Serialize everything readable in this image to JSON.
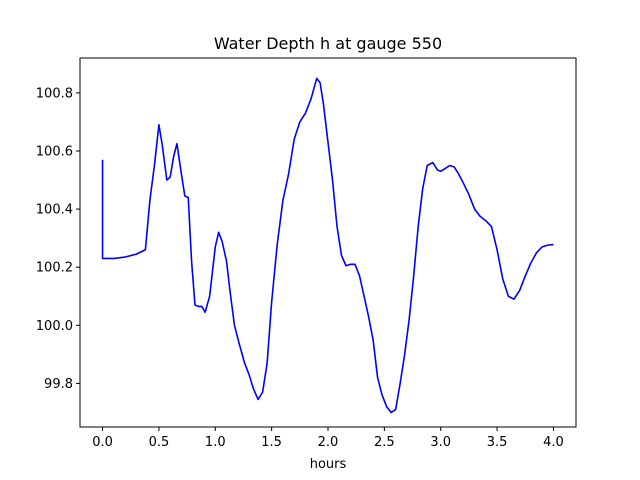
{
  "chart_data": {
    "type": "line",
    "title": "Water Depth h at gauge 550",
    "xlabel": "hours",
    "ylabel": "",
    "xlim": [
      -0.2,
      4.2
    ],
    "ylim": [
      99.65,
      100.92
    ],
    "xticks": [
      0.0,
      0.5,
      1.0,
      1.5,
      2.0,
      2.5,
      3.0,
      3.5,
      4.0
    ],
    "xtick_labels": [
      "0.0",
      "0.5",
      "1.0",
      "1.5",
      "2.0",
      "2.5",
      "3.0",
      "3.5",
      "4.0"
    ],
    "yticks": [
      99.8,
      100.0,
      100.2,
      100.4,
      100.6,
      100.8
    ],
    "ytick_labels": [
      "99.8",
      "100.0",
      "100.2",
      "100.4",
      "100.6",
      "100.8"
    ],
    "grid": false,
    "series": [
      {
        "name": "",
        "color": "#0000ff",
        "x": [
          0.0,
          0.0,
          0.05,
          0.1,
          0.2,
          0.3,
          0.38,
          0.42,
          0.46,
          0.5,
          0.53,
          0.57,
          0.6,
          0.63,
          0.66,
          0.7,
          0.73,
          0.76,
          0.79,
          0.82,
          0.85,
          0.88,
          0.91,
          0.95,
          1.0,
          1.03,
          1.06,
          1.1,
          1.13,
          1.17,
          1.21,
          1.26,
          1.3,
          1.34,
          1.38,
          1.42,
          1.46,
          1.5,
          1.55,
          1.6,
          1.65,
          1.7,
          1.75,
          1.8,
          1.85,
          1.9,
          1.93,
          1.96,
          2.0,
          2.04,
          2.08,
          2.12,
          2.16,
          2.2,
          2.24,
          2.28,
          2.32,
          2.36,
          2.4,
          2.44,
          2.48,
          2.52,
          2.56,
          2.6,
          2.64,
          2.68,
          2.72,
          2.76,
          2.8,
          2.84,
          2.88,
          2.93,
          2.97,
          3.0,
          3.04,
          3.08,
          3.12,
          3.16,
          3.2,
          3.25,
          3.3,
          3.35,
          3.4,
          3.45,
          3.5,
          3.55,
          3.6,
          3.65,
          3.7,
          3.75,
          3.8,
          3.85,
          3.9,
          3.95,
          4.0
        ],
        "y": [
          100.57,
          100.23,
          100.23,
          100.23,
          100.235,
          100.245,
          100.26,
          100.43,
          100.55,
          100.69,
          100.62,
          100.5,
          100.51,
          100.58,
          100.625,
          100.52,
          100.445,
          100.44,
          100.22,
          100.07,
          100.065,
          100.065,
          100.045,
          100.1,
          100.27,
          100.32,
          100.29,
          100.22,
          100.12,
          100.0,
          99.94,
          99.87,
          99.83,
          99.78,
          99.745,
          99.77,
          99.87,
          100.08,
          100.28,
          100.43,
          100.52,
          100.64,
          100.7,
          100.73,
          100.78,
          100.85,
          100.835,
          100.76,
          100.63,
          100.5,
          100.34,
          100.24,
          100.205,
          100.21,
          100.21,
          100.17,
          100.1,
          100.03,
          99.95,
          99.82,
          99.76,
          99.72,
          99.7,
          99.71,
          99.8,
          99.9,
          100.02,
          100.17,
          100.34,
          100.47,
          100.55,
          100.56,
          100.535,
          100.53,
          100.54,
          100.55,
          100.545,
          100.52,
          100.49,
          100.45,
          100.4,
          100.375,
          100.36,
          100.34,
          100.26,
          100.16,
          100.1,
          100.09,
          100.12,
          100.17,
          100.215,
          100.25,
          100.27,
          100.276,
          100.278
        ]
      }
    ]
  }
}
